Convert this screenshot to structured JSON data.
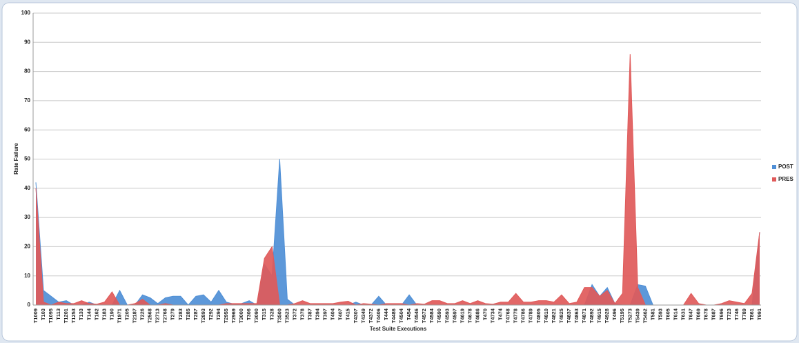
{
  "chart_data": {
    "type": "area",
    "y_label": "Rate Failure",
    "x_label": "Test Suite Executions",
    "categories": [
      "T1009",
      "T103",
      "T1095",
      "T113",
      "T1201",
      "T1253",
      "T133",
      "T144",
      "T162",
      "T183",
      "T190",
      "T1971",
      "T205",
      "T2187",
      "T226",
      "T2568",
      "T2713",
      "T2768",
      "T279",
      "T283",
      "T285",
      "T287",
      "T2893",
      "T292",
      "T294",
      "T2955",
      "T2969",
      "T3000",
      "T306",
      "T3090",
      "T315",
      "T328",
      "T3500",
      "T3523",
      "T372",
      "T378",
      "T387",
      "T394",
      "T397",
      "T404",
      "T407",
      "T415",
      "T4307",
      "T4349",
      "T4372",
      "T4406",
      "T444",
      "T4486",
      "T4504",
      "T454",
      "T4546",
      "T4572",
      "T4584",
      "T4590",
      "T4593",
      "T4597",
      "T4619",
      "T4678",
      "T4686",
      "T470",
      "T4734",
      "T474",
      "T4768",
      "T4778",
      "T4786",
      "T4789",
      "T4805",
      "T4810",
      "T4821",
      "T4825",
      "T4837",
      "T4863",
      "T4871",
      "T4892",
      "T4915",
      "T4928",
      "T496",
      "T5195",
      "T5273",
      "T5439",
      "T5462",
      "T581",
      "T593",
      "T605",
      "T614",
      "T631",
      "T647",
      "T669",
      "T678",
      "T687",
      "T696",
      "T723",
      "T746",
      "T789",
      "T861",
      "T991"
    ],
    "series": [
      {
        "name": "POST",
        "color": "#4f8fd6",
        "values": [
          42,
          5,
          3,
          1,
          1.5,
          0,
          0,
          1,
          0,
          0,
          0,
          5,
          0,
          0,
          3.5,
          2.5,
          0.5,
          2.5,
          3,
          3,
          0,
          3,
          3.5,
          1,
          5,
          1,
          0.3,
          0.5,
          1.5,
          0,
          14,
          10,
          50,
          2,
          0,
          0,
          0,
          0,
          0,
          0,
          0,
          0,
          1,
          0,
          0,
          3,
          0,
          0,
          0,
          3.5,
          0,
          0,
          0,
          0,
          0,
          0,
          0,
          0,
          0,
          0,
          0,
          0,
          0,
          0,
          0,
          0,
          0,
          0,
          0,
          0,
          0,
          0,
          0,
          7,
          3,
          6,
          0.5,
          0,
          0,
          7,
          6.5,
          0,
          0,
          0,
          0,
          0,
          0,
          0,
          0,
          0,
          0,
          0,
          0,
          0,
          0,
          25
        ]
      },
      {
        "name": "PRES",
        "color": "#e05a5a",
        "values": [
          40,
          1,
          0,
          1,
          0.5,
          0.5,
          1.5,
          0.5,
          0.3,
          1,
          4.5,
          0,
          0,
          0.5,
          2,
          0,
          0,
          0.5,
          0,
          0,
          0,
          0,
          0,
          0,
          0,
          0.5,
          0.5,
          0.5,
          0.5,
          0.5,
          16,
          20,
          0,
          0,
          0.5,
          1.5,
          0.5,
          0.5,
          0.5,
          0.5,
          1,
          1.3,
          0,
          0.5,
          0.3,
          0,
          0.5,
          0.5,
          0.5,
          0,
          0.5,
          0.3,
          1.5,
          1.5,
          0.5,
          0.5,
          1.5,
          0.5,
          1.5,
          0.5,
          0.3,
          1,
          1,
          4,
          1,
          1,
          1.5,
          1.5,
          1,
          3.5,
          0.5,
          1,
          6,
          6,
          3,
          5,
          0.5,
          4,
          86,
          6,
          0,
          0,
          0,
          0,
          0,
          0,
          4,
          0.5,
          0,
          0,
          0.5,
          1.5,
          1,
          0.5,
          4,
          25
        ]
      }
    ],
    "ylim": [
      0,
      100
    ],
    "yticks": [
      0,
      10,
      20,
      30,
      40,
      50,
      60,
      70,
      80,
      90,
      100
    ],
    "grid": true,
    "legend": "right"
  }
}
